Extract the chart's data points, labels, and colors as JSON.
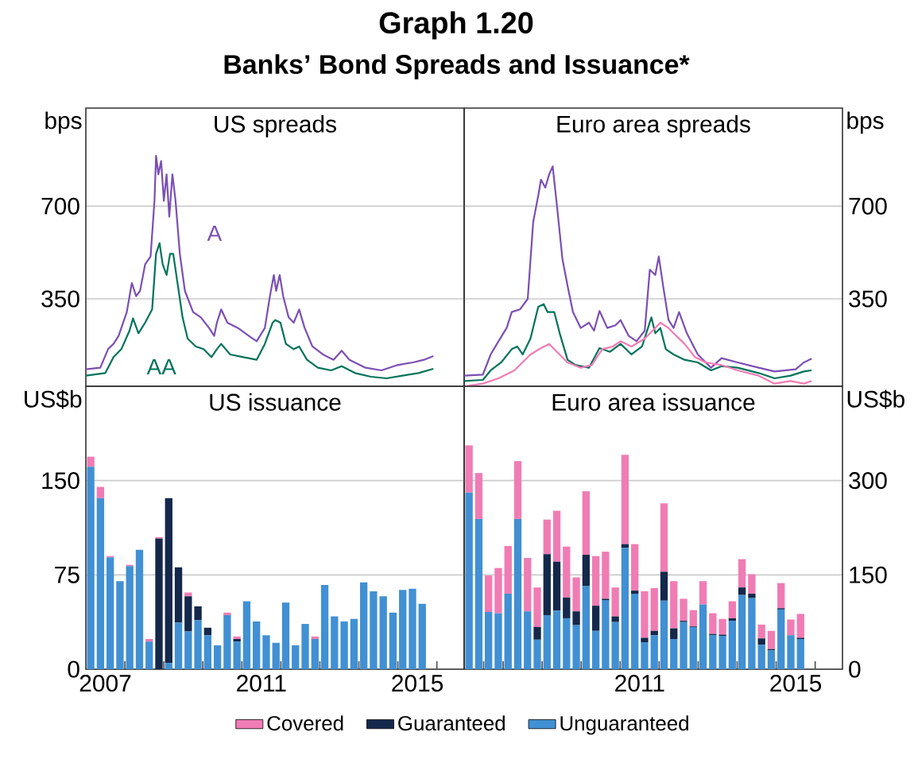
{
  "chart_data": [
    {
      "type": "line",
      "title": "US spreads",
      "ylabel": "bps",
      "annotations": [
        "Graph 1.20",
        "Banks’ Bond Spreads and Issuance*"
      ],
      "xlim": [
        2007,
        2016.7
      ],
      "ylim": [
        20,
        1070
      ],
      "yticks": [
        350,
        700
      ],
      "grid": "y",
      "tick_labels": "y",
      "series": [
        {
          "name": "A",
          "color": "#7b4fb3",
          "x": [
            2007.0,
            2007.37,
            2007.57,
            2007.71,
            2007.84,
            2008.05,
            2008.18,
            2008.29,
            2008.39,
            2008.52,
            2008.66,
            2008.76,
            2008.8,
            2008.86,
            2008.93,
            2009.0,
            2009.07,
            2009.14,
            2009.22,
            2009.3,
            2009.41,
            2009.54,
            2009.75,
            2009.95,
            2010.16,
            2010.29,
            2010.36,
            2010.47,
            2010.63,
            2010.9,
            2011.18,
            2011.38,
            2011.59,
            2011.72,
            2011.82,
            2011.88,
            2011.97,
            2012.06,
            2012.2,
            2012.33,
            2012.47,
            2012.61,
            2012.81,
            2013.08,
            2013.35,
            2013.56,
            2013.76,
            2014.17,
            2014.58,
            2014.99,
            2015.39,
            2015.67,
            2015.91
          ],
          "values": [
            84,
            90,
            160,
            180,
            210,
            300,
            410,
            360,
            380,
            480,
            510,
            720,
            890,
            820,
            870,
            720,
            820,
            660,
            820,
            720,
            520,
            380,
            300,
            280,
            240,
            210,
            260,
            310,
            260,
            240,
            210,
            190,
            240,
            360,
            440,
            380,
            440,
            360,
            280,
            260,
            310,
            240,
            170,
            140,
            120,
            154,
            120,
            90,
            80,
            100,
            110,
            120,
            134
          ]
        },
        {
          "name": "AA",
          "color": "#00735a",
          "x": [
            2007.0,
            2007.5,
            2007.71,
            2007.91,
            2008.12,
            2008.21,
            2008.35,
            2008.52,
            2008.7,
            2008.8,
            2008.89,
            2008.97,
            2009.07,
            2009.16,
            2009.24,
            2009.34,
            2009.48,
            2009.61,
            2009.82,
            2010.02,
            2010.22,
            2010.36,
            2010.47,
            2010.7,
            2011.04,
            2011.38,
            2011.59,
            2011.79,
            2011.86,
            2011.99,
            2012.13,
            2012.33,
            2012.47,
            2012.67,
            2012.95,
            2013.29,
            2013.56,
            2013.9,
            2014.31,
            2014.71,
            2015.12,
            2015.53,
            2015.91
          ],
          "values": [
            60,
            70,
            130,
            160,
            230,
            276,
            220,
            260,
            310,
            520,
            560,
            480,
            440,
            520,
            520,
            420,
            280,
            200,
            170,
            160,
            130,
            160,
            180,
            140,
            130,
            120,
            180,
            260,
            270,
            260,
            180,
            160,
            170,
            120,
            90,
            80,
            96,
            70,
            56,
            50,
            60,
            70,
            86
          ]
        }
      ]
    },
    {
      "type": "line",
      "title": "Euro area spreads",
      "ylabel": "bps",
      "xlim": [
        2007,
        2016.7
      ],
      "ylim": [
        20,
        1070
      ],
      "yticks": [
        350,
        700
      ],
      "grid": "y",
      "tick_labels": "y",
      "series": [
        {
          "color": "#7b4fb3",
          "x": [
            2007.0,
            2007.48,
            2007.68,
            2007.88,
            2008.09,
            2008.22,
            2008.43,
            2008.63,
            2008.77,
            2008.9,
            2008.97,
            2009.08,
            2009.18,
            2009.27,
            2009.38,
            2009.52,
            2009.65,
            2009.79,
            2009.99,
            2010.2,
            2010.33,
            2010.47,
            2010.67,
            2010.88,
            2011.01,
            2011.22,
            2011.42,
            2011.63,
            2011.76,
            2011.9,
            2011.99,
            2012.1,
            2012.24,
            2012.37,
            2012.51,
            2012.71,
            2012.99,
            2013.33,
            2013.6,
            2014.01,
            2014.55,
            2014.96,
            2015.5,
            2015.71,
            2015.91
          ],
          "values": [
            60,
            64,
            140,
            190,
            240,
            300,
            310,
            350,
            640,
            740,
            800,
            770,
            820,
            850,
            700,
            500,
            400,
            300,
            240,
            260,
            230,
            304,
            240,
            250,
            270,
            210,
            190,
            230,
            460,
            440,
            510,
            400,
            270,
            240,
            300,
            220,
            140,
            90,
            126,
            110,
            90,
            76,
            84,
            110,
            124
          ]
        },
        {
          "color": "#00735a",
          "x": [
            2007.0,
            2007.48,
            2007.68,
            2007.95,
            2008.22,
            2008.36,
            2008.5,
            2008.7,
            2008.9,
            2009.04,
            2009.14,
            2009.31,
            2009.45,
            2009.65,
            2009.86,
            2010.2,
            2010.47,
            2010.74,
            2011.01,
            2011.29,
            2011.56,
            2011.8,
            2011.9,
            2012.03,
            2012.17,
            2012.37,
            2012.65,
            2012.99,
            2013.33,
            2013.6,
            2014.01,
            2014.55,
            2014.96,
            2015.37,
            2015.71,
            2015.91
          ],
          "values": [
            40,
            44,
            80,
            110,
            160,
            170,
            140,
            200,
            320,
            330,
            300,
            300,
            220,
            120,
            100,
            90,
            164,
            150,
            180,
            140,
            170,
            280,
            220,
            240,
            160,
            140,
            120,
            110,
            80,
            96,
            90,
            70,
            50,
            60,
            76,
            80
          ]
        },
        {
          "color": "#f07cb4",
          "x": [
            2007.0,
            2007.48,
            2007.88,
            2008.29,
            2008.7,
            2008.97,
            2009.18,
            2009.38,
            2009.65,
            2009.99,
            2010.27,
            2010.54,
            2010.81,
            2011.01,
            2011.29,
            2011.63,
            2011.9,
            2012.03,
            2012.24,
            2012.44,
            2012.65,
            2012.92,
            2013.19,
            2013.6,
            2014.01,
            2014.55,
            2014.96,
            2015.37,
            2015.71,
            2015.91
          ],
          "values": [
            20,
            30,
            50,
            80,
            140,
            164,
            180,
            150,
            110,
            90,
            100,
            160,
            170,
            190,
            170,
            200,
            240,
            260,
            240,
            210,
            180,
            130,
            110,
            100,
            80,
            60,
            30,
            40,
            30,
            40
          ]
        }
      ]
    },
    {
      "type": "bar",
      "title": "US issuance",
      "ylabel": "US$b",
      "stacked": true,
      "legend": "bottom",
      "xlim": [
        2007,
        2016.7
      ],
      "ylim": [
        0,
        225
      ],
      "yticks": [
        0,
        75,
        150
      ],
      "grid": "y",
      "xticks": [
        {
          "value": 2007.5,
          "label": "2007"
        },
        {
          "value": 2008,
          "label": null
        },
        {
          "value": 2009,
          "label": null
        },
        {
          "value": 2010,
          "label": null
        },
        {
          "value": 2011,
          "label": null
        },
        {
          "value": 2011.5,
          "label": "2011"
        },
        {
          "value": 2012,
          "label": null
        },
        {
          "value": 2013,
          "label": null
        },
        {
          "value": 2014,
          "label": null
        },
        {
          "value": 2015,
          "label": null
        },
        {
          "value": 2015.5,
          "label": "2015"
        },
        {
          "value": 2016,
          "label": null
        }
      ],
      "x": [
        2007.125,
        2007.375,
        2007.625,
        2007.875,
        2008.125,
        2008.375,
        2008.625,
        2008.875,
        2009.125,
        2009.375,
        2009.625,
        2009.875,
        2010.125,
        2010.375,
        2010.625,
        2010.875,
        2011.125,
        2011.375,
        2011.625,
        2011.875,
        2012.125,
        2012.375,
        2012.625,
        2012.875,
        2013.125,
        2013.375,
        2013.625,
        2013.875,
        2014.125,
        2014.375,
        2014.625,
        2014.875,
        2015.125,
        2015.375,
        2015.625
      ],
      "series": [
        {
          "name": "Unguaranteed",
          "color": "#4190d3",
          "values": [
            161,
            136,
            89,
            70,
            82,
            95,
            22,
            0,
            5,
            37,
            30,
            39,
            27,
            19,
            43,
            22,
            54,
            38,
            27,
            21,
            53,
            19,
            36,
            24,
            67,
            42,
            38,
            40,
            69,
            62,
            58,
            45,
            63,
            64,
            52
          ]
        },
        {
          "name": "Guaranteed",
          "color": "#14284b",
          "values": [
            0,
            0,
            0,
            0,
            0,
            0,
            0,
            104,
            131,
            44,
            28,
            11,
            6,
            0,
            0,
            2,
            0,
            0,
            0,
            0,
            0,
            0,
            0,
            0,
            0,
            0,
            0,
            0,
            0,
            0,
            0,
            0,
            0,
            0,
            0
          ]
        },
        {
          "name": "Covered",
          "color": "#f07cb4",
          "values": [
            8,
            9,
            1,
            0,
            1,
            0,
            2,
            1,
            0,
            0,
            3,
            0,
            0,
            0,
            2,
            2,
            0,
            0,
            0,
            0,
            0,
            0,
            0,
            2,
            0,
            0,
            0,
            0,
            0,
            0,
            0,
            0,
            0,
            0,
            0
          ]
        }
      ]
    },
    {
      "type": "bar",
      "title": "Euro area issuance",
      "ylabel": "US$b",
      "stacked": true,
      "xlim": [
        2007,
        2016.7
      ],
      "ylim": [
        0,
        450
      ],
      "yticks": [
        0,
        150,
        300
      ],
      "grid": "y",
      "xticks": [
        {
          "value": 2007.5,
          "label": null
        },
        {
          "value": 2008,
          "label": null
        },
        {
          "value": 2009,
          "label": null
        },
        {
          "value": 2010,
          "label": null
        },
        {
          "value": 2011,
          "label": null
        },
        {
          "value": 2011.5,
          "label": "2011"
        },
        {
          "value": 2012,
          "label": null
        },
        {
          "value": 2013,
          "label": null
        },
        {
          "value": 2014,
          "label": null
        },
        {
          "value": 2015,
          "label": null
        },
        {
          "value": 2015.5,
          "label": "2015"
        },
        {
          "value": 2016,
          "label": null
        }
      ],
      "x": [
        2007.125,
        2007.375,
        2007.625,
        2007.875,
        2008.125,
        2008.375,
        2008.625,
        2008.875,
        2009.125,
        2009.375,
        2009.625,
        2009.875,
        2010.125,
        2010.375,
        2010.625,
        2010.875,
        2011.125,
        2011.375,
        2011.625,
        2011.875,
        2012.125,
        2012.375,
        2012.625,
        2012.875,
        2013.125,
        2013.375,
        2013.625,
        2013.875,
        2014.125,
        2014.375,
        2014.625,
        2014.875,
        2015.125,
        2015.375,
        2015.625
      ],
      "series": [
        {
          "color": "#4190d3",
          "values": [
            281,
            239,
            91,
            89,
            120,
            239,
            92,
            47,
            86,
            93,
            81,
            70,
            132,
            61,
            110,
            75,
            193,
            120,
            43,
            54,
            109,
            48,
            75,
            67,
            103,
            54,
            53,
            77,
            118,
            113,
            39,
            30,
            95,
            54,
            48
          ]
        },
        {
          "color": "#14284b",
          "values": [
            0,
            0,
            0,
            0,
            0,
            0,
            0,
            20,
            97,
            78,
            33,
            22,
            50,
            40,
            2,
            9,
            6,
            5,
            7,
            7,
            46,
            17,
            2,
            1,
            0,
            2,
            2,
            4,
            12,
            7,
            10,
            2,
            2,
            0,
            2
          ]
        },
        {
          "color": "#f07cb4",
          "values": [
            75,
            73,
            58,
            72,
            76,
            92,
            85,
            63,
            55,
            81,
            81,
            54,
            101,
            79,
            75,
            46,
            142,
            74,
            74,
            68,
            109,
            75,
            35,
            26,
            37,
            33,
            25,
            27,
            45,
            31,
            22,
            29,
            40,
            25,
            38
          ]
        }
      ]
    }
  ]
}
